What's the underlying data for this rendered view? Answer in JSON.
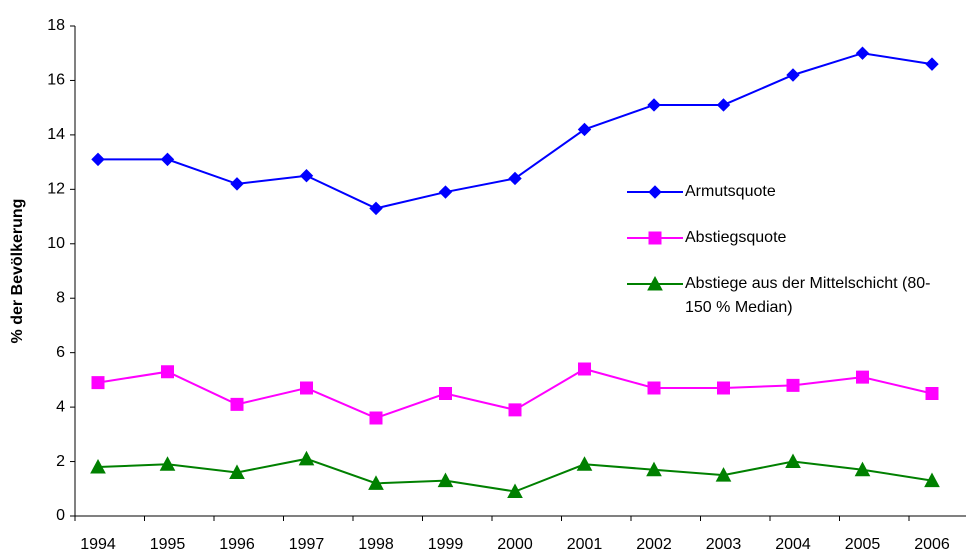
{
  "chart_data": {
    "type": "line",
    "y_label": "% der Bevölkerung",
    "categories": [
      "1994",
      "1995",
      "1996",
      "1997",
      "1998",
      "1999",
      "2000",
      "2001",
      "2002",
      "2003",
      "2004",
      "2005",
      "2006"
    ],
    "series": [
      {
        "name": "Armutsquote",
        "color": "#0000ff",
        "marker": "diamond",
        "values": [
          13.1,
          13.1,
          12.2,
          12.5,
          11.3,
          11.9,
          12.4,
          14.2,
          15.1,
          15.1,
          16.2,
          17.0,
          16.6
        ]
      },
      {
        "name": "Abstiegsquote",
        "color": "#ff00ff",
        "marker": "square",
        "values": [
          4.9,
          5.3,
          4.1,
          4.7,
          3.6,
          4.5,
          3.9,
          5.4,
          4.7,
          4.7,
          4.8,
          5.1,
          4.5
        ]
      },
      {
        "name": "Abstiege aus der Mittelschicht (80-150 % Median)",
        "color": "#008000",
        "marker": "triangle",
        "values": [
          1.8,
          1.9,
          1.6,
          2.1,
          1.2,
          1.3,
          0.9,
          1.9,
          1.7,
          1.5,
          2.0,
          1.7,
          1.3
        ]
      }
    ],
    "ylim": [
      0,
      18
    ],
    "yticks": [
      0,
      2,
      4,
      6,
      8,
      10,
      12,
      14,
      16,
      18
    ],
    "grid": false
  }
}
